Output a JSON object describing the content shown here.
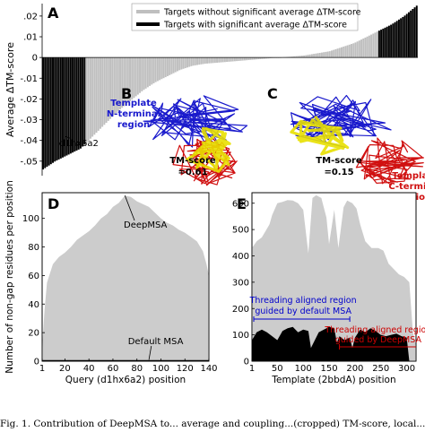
{
  "figure": {
    "panel_letters": [
      "A",
      "B",
      "C",
      "D",
      "E"
    ],
    "caption": "Fig. 1. Contribution of DeepMSA to... average and coupling...(cropped) TM-score, local..."
  },
  "chart_data": [
    {
      "panel": "A",
      "type": "bar",
      "ylabel": "Average ΔTM-score",
      "ylim": [
        -0.057,
        0.026
      ],
      "yticks": [
        0.02,
        0.01,
        0,
        -0.01,
        -0.02,
        -0.03,
        -0.04,
        -0.05
      ],
      "ytick_labels": [
        ".02",
        ".01",
        "0",
        "-.01",
        "-.02",
        "-.03",
        "-.04",
        "-.05"
      ],
      "legend": {
        "position": "top-center",
        "entries": [
          {
            "label": "Targets without significant average ΔTM-score",
            "color": "#bfbfbf"
          },
          {
            "label": "Targets with significant average ΔTM-score",
            "color": "#000000"
          }
        ]
      },
      "annotation": "d1hx6a2",
      "annotated_value": -0.044,
      "sorted": "ascending",
      "num_targets": 190,
      "value_samples": [
        -0.054,
        -0.05,
        -0.047,
        -0.044,
        -0.038,
        -0.032,
        -0.026,
        -0.021,
        -0.016,
        -0.012,
        -0.009,
        -0.006,
        -0.004,
        -0.003,
        -0.0025,
        -0.002,
        -0.0015,
        -0.001,
        -0.0005,
        0,
        0.0005,
        0.001,
        0.002,
        0.003,
        0.005,
        0.007,
        0.01,
        0.013,
        0.016,
        0.02,
        0.025
      ],
      "significant_negative_count": 22,
      "significant_positive_count": 20
    },
    {
      "panel": "D",
      "type": "area",
      "xlabel": "Query (d1hx6a2) position",
      "ylabel": "Number of non-gap residues per position",
      "xlim": [
        1,
        140
      ],
      "ylim": [
        0,
        118
      ],
      "xticks": [
        1,
        20,
        40,
        60,
        80,
        100,
        120,
        140
      ],
      "yticks": [
        0,
        20,
        40,
        60,
        80,
        100
      ],
      "series": [
        {
          "name": "DeepMSA",
          "color": "#cccccc",
          "x": [
            1,
            3,
            5,
            10,
            15,
            20,
            25,
            30,
            35,
            40,
            45,
            50,
            55,
            60,
            65,
            70,
            75,
            80,
            85,
            90,
            95,
            100,
            105,
            110,
            115,
            120,
            125,
            130,
            135,
            138,
            140
          ],
          "y": [
            10,
            36,
            55,
            68,
            73,
            76,
            80,
            85,
            88,
            91,
            95,
            100,
            103,
            108,
            111,
            116,
            115,
            112,
            110,
            108,
            104,
            100,
            97,
            95,
            92,
            90,
            87,
            84,
            77,
            68,
            60
          ]
        },
        {
          "name": "Default MSA",
          "color": "#000000",
          "x": [
            1,
            140
          ],
          "y": [
            0.8,
            0.8
          ]
        }
      ]
    },
    {
      "panel": "E",
      "type": "area",
      "xlabel": "Template (2bbdA) position",
      "ylabel": "",
      "xlim": [
        1,
        318
      ],
      "ylim": [
        0,
        640
      ],
      "xticks": [
        1,
        50,
        100,
        150,
        200,
        250,
        300
      ],
      "yticks": [
        0,
        100,
        200,
        300,
        400,
        500,
        600
      ],
      "series": [
        {
          "name": "DeepMSA",
          "color": "#cccccc",
          "x": [
            1,
            10,
            20,
            35,
            40,
            50,
            60,
            70,
            80,
            90,
            100,
            110,
            118,
            125,
            135,
            145,
            150,
            160,
            168,
            178,
            185,
            195,
            203,
            210,
            220,
            232,
            245,
            255,
            265,
            275,
            285,
            295,
            305,
            312,
            318
          ],
          "y": [
            430,
            455,
            470,
            520,
            555,
            600,
            605,
            612,
            610,
            600,
            575,
            410,
            620,
            630,
            620,
            545,
            445,
            575,
            430,
            585,
            610,
            600,
            580,
            520,
            455,
            430,
            430,
            420,
            370,
            350,
            330,
            320,
            300,
            110,
            60
          ]
        },
        {
          "name": "Default MSA",
          "color": "#000000",
          "x": [
            1,
            10,
            20,
            30,
            40,
            50,
            60,
            70,
            80,
            90,
            100,
            110,
            115,
            120,
            130,
            140,
            150,
            160,
            165,
            170,
            180,
            190,
            195,
            200,
            210,
            220,
            230,
            240,
            250,
            260,
            270,
            280,
            290,
            300,
            305
          ],
          "y": [
            80,
            110,
            120,
            110,
            95,
            80,
            115,
            125,
            130,
            110,
            120,
            115,
            50,
            70,
            110,
            120,
            130,
            125,
            70,
            95,
            80,
            90,
            50,
            90,
            120,
            110,
            125,
            115,
            100,
            95,
            100,
            105,
            95,
            90,
            0
          ]
        }
      ],
      "annotations": [
        {
          "text": "Threading aligned region guided by default MSA",
          "color": "#0000cc",
          "span": [
            1,
            190
          ]
        },
        {
          "text": "Threading aligned region guided by DeepMSA",
          "color": "#cc0000",
          "span": [
            170,
            318
          ]
        }
      ]
    }
  ],
  "structures": {
    "B": {
      "labels": [
        "Template N-terminal region"
      ],
      "tm_label": "TM-score",
      "tm_value": "=0.61"
    },
    "C": {
      "labels": [
        "Template C-terminal region"
      ],
      "tm_label": "TM-score",
      "tm_value": "=0.15"
    }
  },
  "colors": {
    "gray": "#c8c8c8",
    "black": "#000000",
    "blue": "#1a1acc",
    "red": "#d01010",
    "yellow": "#e8e000"
  }
}
